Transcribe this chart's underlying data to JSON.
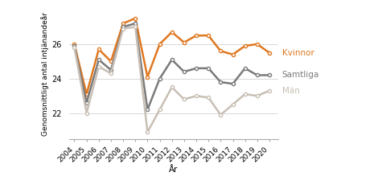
{
  "years": [
    2004,
    2005,
    2006,
    2007,
    2008,
    2009,
    2010,
    2011,
    2012,
    2013,
    2014,
    2015,
    2016,
    2017,
    2018,
    2019,
    2020
  ],
  "kvinnor": [
    26.0,
    23.1,
    25.7,
    25.0,
    27.2,
    27.5,
    24.1,
    26.0,
    26.7,
    26.1,
    26.5,
    26.5,
    25.6,
    25.4,
    25.9,
    26.0,
    25.5
  ],
  "samtliga": [
    25.9,
    22.6,
    25.1,
    24.5,
    27.0,
    27.2,
    22.2,
    24.0,
    25.1,
    24.4,
    24.6,
    24.6,
    23.8,
    23.7,
    24.6,
    24.2,
    24.2
  ],
  "man": [
    25.8,
    22.0,
    24.7,
    24.3,
    26.9,
    27.0,
    20.9,
    22.2,
    23.5,
    22.8,
    23.0,
    22.9,
    21.9,
    22.5,
    23.1,
    23.0,
    23.3
  ],
  "kvinnor_color": "#E07820",
  "samtliga_color": "#7a7a7a",
  "man_color": "#c8bfb5",
  "ylabel": "Genomsnittligt antal intjänandeår",
  "xlabel": "År",
  "ylim": [
    20.5,
    28.0
  ],
  "yticks": [
    22,
    24,
    26
  ],
  "legend_labels": [
    "Kvinnor",
    "Samtliga",
    "Män"
  ],
  "background_color": "#ffffff",
  "grid_color": "#d8d8d8",
  "axis_fontsize": 7,
  "legend_fontsize": 7.5,
  "ylabel_fontsize": 6.5
}
